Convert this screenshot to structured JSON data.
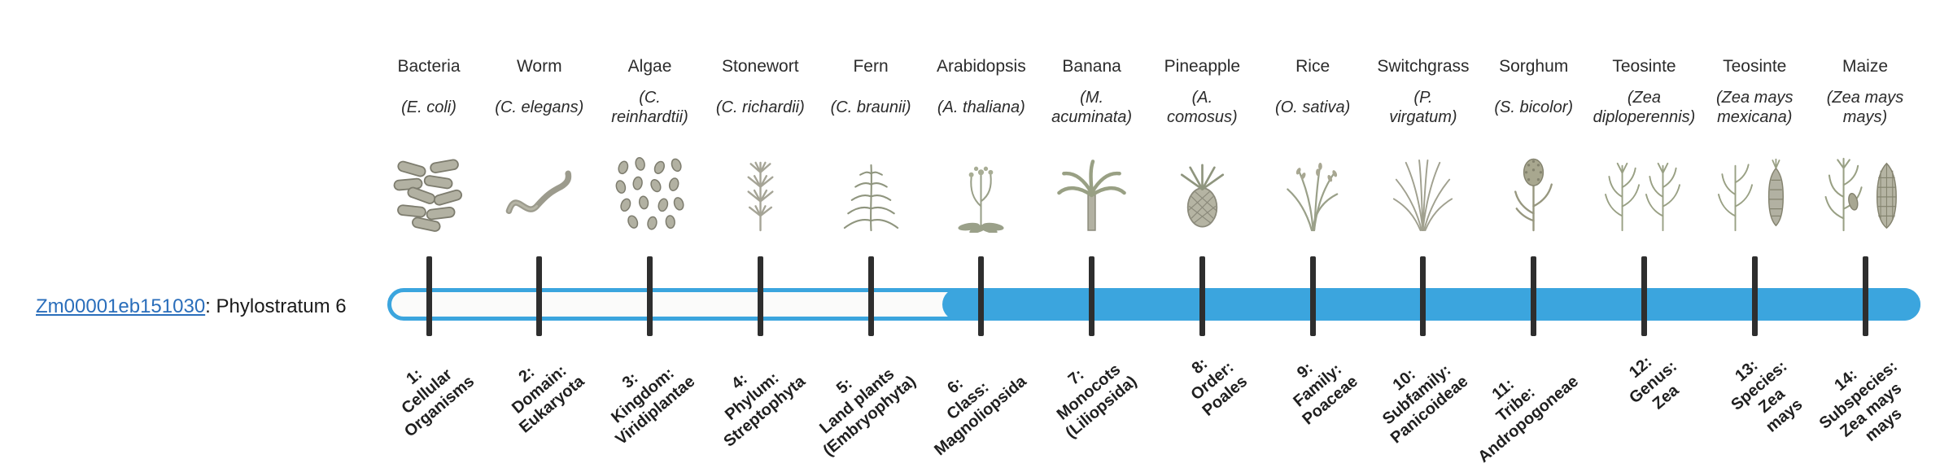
{
  "gene": {
    "id": "Zm00001eb151030",
    "phylostratum_text": ": Phylostratum 6",
    "phylostratum": 6
  },
  "timeline": {
    "filled_from_index": 6,
    "fill_color": "#3BA5DE",
    "outline_color": "#3BA5DE",
    "track_background": "#FBFBFA",
    "tick_color": "#2E2E2E"
  },
  "link_color": "#2A6EBB",
  "organisms": [
    {
      "common": "Bacteria",
      "sci": "(E. coli)",
      "icon": "bacteria-icon",
      "stratum_label": "1:\nCellular\nOrganisms"
    },
    {
      "common": "Worm",
      "sci": "(C. elegans)",
      "icon": "worm-icon",
      "stratum_label": "2:\nDomain:\nEukaryota"
    },
    {
      "common": "Algae",
      "sci": "(C.\nreinhardtii)",
      "icon": "algae-icon",
      "stratum_label": "3:\nKingdom:\nViridiplantae"
    },
    {
      "common": "Stonewort",
      "sci": "(C. richardii)",
      "icon": "stonewort-icon",
      "stratum_label": "4:\nPhylum:\nStreptophyta"
    },
    {
      "common": "Fern",
      "sci": "(C. braunii)",
      "icon": "fern-icon",
      "stratum_label": "5:\nLand plants\n(Embryophyta)"
    },
    {
      "common": "Arabidopsis",
      "sci": "(A. thaliana)",
      "icon": "arabidopsis-icon",
      "stratum_label": "6:\nClass:\nMagnoliopsida"
    },
    {
      "common": "Banana",
      "sci": "(M.\nacuminata)",
      "icon": "banana-icon",
      "stratum_label": "7:\nMonocots\n(Liliopsida)"
    },
    {
      "common": "Pineapple",
      "sci": "(A.\ncomosus)",
      "icon": "pineapple-icon",
      "stratum_label": "8:\nOrder:\nPoales"
    },
    {
      "common": "Rice",
      "sci": "(O. sativa)",
      "icon": "rice-icon",
      "stratum_label": "9:\nFamily:\nPoaceae"
    },
    {
      "common": "Switchgrass",
      "sci": "(P.\nvirgatum)",
      "icon": "switchgrass-icon",
      "stratum_label": "10:\nSubfamily:\nPanicoideae"
    },
    {
      "common": "Sorghum",
      "sci": "(S. bicolor)",
      "icon": "sorghum-icon",
      "stratum_label": "11:\nTribe:\nAndropogoneae"
    },
    {
      "common": "Teosinte",
      "sci": "(Zea\ndiploperennis)",
      "icon": "teosinte-diploperennis-icon",
      "stratum_label": "12:\nGenus:\nZea"
    },
    {
      "common": "Teosinte",
      "sci": "(Zea mays\nmexicana)",
      "icon": "teosinte-mexicana-icon",
      "stratum_label": "13:\nSpecies:\nZea\nmays"
    },
    {
      "common": "Maize",
      "sci": "(Zea mays\nmays)",
      "icon": "maize-icon",
      "stratum_label": "14:\nSubspecies:\nZea mays\nmays"
    }
  ]
}
